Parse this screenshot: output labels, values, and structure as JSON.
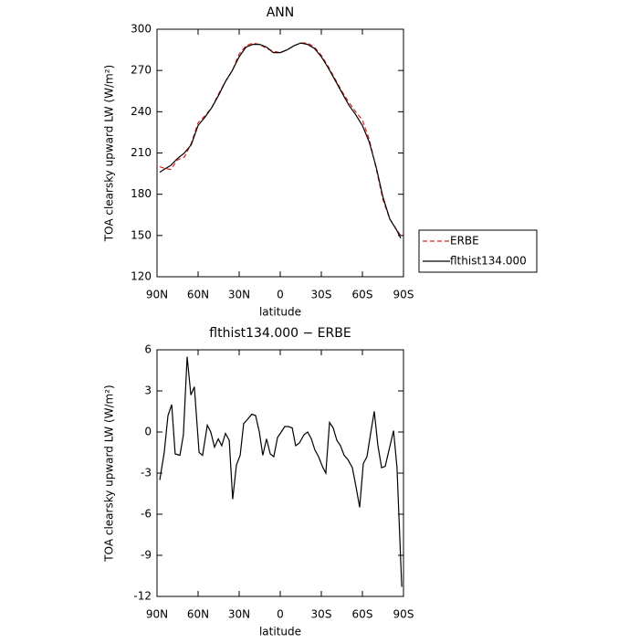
{
  "chart_data": [
    {
      "type": "line",
      "title": "ANN",
      "xlabel": "latitude",
      "ylabel": "TOA clearsky upward LW (W/m²)",
      "xlim": [
        90,
        -90
      ],
      "ylim": [
        120,
        300
      ],
      "xticks": [
        {
          "value": 90,
          "label": "90N"
        },
        {
          "value": 60,
          "label": "60N"
        },
        {
          "value": 30,
          "label": "30N"
        },
        0,
        {
          "value": -30,
          "label": "30S"
        },
        {
          "value": -60,
          "label": "60S"
        },
        {
          "value": -90,
          "label": "90S"
        }
      ],
      "yticks": [
        120,
        150,
        180,
        210,
        240,
        270,
        300
      ],
      "legend": "outside-right",
      "x": [
        88,
        85,
        80,
        75,
        70,
        65,
        60,
        55,
        50,
        45,
        40,
        35,
        30,
        25,
        20,
        15,
        10,
        5,
        0,
        -5,
        -10,
        -15,
        -20,
        -25,
        -30,
        -35,
        -40,
        -45,
        -50,
        -55,
        -60,
        -65,
        -70,
        -75,
        -80,
        -85,
        -88
      ],
      "series": [
        {
          "name": "ERBE",
          "color": "#e0201b",
          "dashed": true,
          "values": [
            200,
            199,
            198,
            205,
            207,
            217,
            232,
            237,
            243,
            253,
            262,
            270,
            282,
            288,
            290,
            289,
            286,
            284,
            283,
            285,
            288,
            290,
            290,
            287,
            281,
            273,
            264,
            255,
            247,
            240,
            234,
            220,
            199,
            176,
            162,
            154,
            150
          ]
        },
        {
          "name": "flthist134.000",
          "color": "#000000",
          "dashed": false,
          "values": [
            196,
            198,
            201,
            206,
            210,
            216,
            230,
            236,
            243,
            252,
            262,
            270,
            280,
            287,
            289,
            289,
            287,
            283,
            283,
            285,
            288,
            290,
            289,
            286,
            280,
            272,
            263,
            254,
            245,
            238,
            230,
            218,
            200,
            178,
            162,
            154,
            148
          ]
        }
      ]
    },
    {
      "type": "line",
      "title": "flthist134.000 − ERBE",
      "xlabel": "latitude",
      "ylabel": "TOA clearsky upward LW (W/m²)",
      "xlim": [
        90,
        -90
      ],
      "ylim": [
        -12,
        6
      ],
      "xticks": [
        {
          "value": 90,
          "label": "90N"
        },
        {
          "value": 60,
          "label": "60N"
        },
        {
          "value": 30,
          "label": "30N"
        },
        0,
        {
          "value": -30,
          "label": "30S"
        },
        {
          "value": -60,
          "label": "60S"
        },
        {
          "value": -90,
          "label": "90S"
        }
      ],
      "yticks": [
        -12,
        -9,
        -6,
        -3,
        0,
        3,
        6
      ],
      "x": [
        88,
        84.7,
        82,
        79.3,
        76.7,
        73.3,
        70.7,
        68,
        65.3,
        62.7,
        59.3,
        56.7,
        53.3,
        50.7,
        48,
        45.3,
        42.7,
        40,
        37.3,
        34.7,
        32,
        29.3,
        26.7,
        23.3,
        20.7,
        18,
        15.3,
        12.7,
        10,
        7.3,
        4.7,
        2,
        -0.7,
        -3.3,
        -6,
        -8.7,
        -11.3,
        -14,
        -17.3,
        -20,
        -22.7,
        -25.3,
        -28,
        -30.7,
        -33.3,
        -36,
        -38.7,
        -41.3,
        -44,
        -46.7,
        -49.3,
        -52.7,
        -55.3,
        -58,
        -60.7,
        -63.3,
        -66,
        -68.7,
        -71.3,
        -74,
        -76.7,
        -82.7,
        -85.3,
        -88.7
      ],
      "series": [
        {
          "name": "flthist134.000 − ERBE",
          "color": "#000000",
          "dashed": false,
          "values": [
            -3.5,
            -1.5,
            1.2,
            2.0,
            -1.6,
            -1.7,
            -0.2,
            5.5,
            2.7,
            3.3,
            -1.5,
            -1.7,
            0.5,
            0,
            -1.1,
            -0.5,
            -1.0,
            -0.1,
            -0.6,
            -4.9,
            -2.4,
            -1.7,
            0.6,
            1.0,
            1.3,
            1.2,
            0,
            -1.7,
            -0.5,
            -1.6,
            -1.8,
            -0.4,
            0,
            0.4,
            0.4,
            0.3,
            -1.0,
            -0.8,
            -0.2,
            0,
            -0.5,
            -1.3,
            -1.8,
            -2.5,
            -3.0,
            0.7,
            0.3,
            -0.6,
            -1.0,
            -1.7,
            -2.0,
            -2.6,
            -4.0,
            -5.5,
            -2.3,
            -1.8,
            -0.1,
            1.5,
            -1.0,
            -2.6,
            -2.5,
            0.1,
            -2.6,
            -11.3
          ]
        }
      ]
    }
  ]
}
